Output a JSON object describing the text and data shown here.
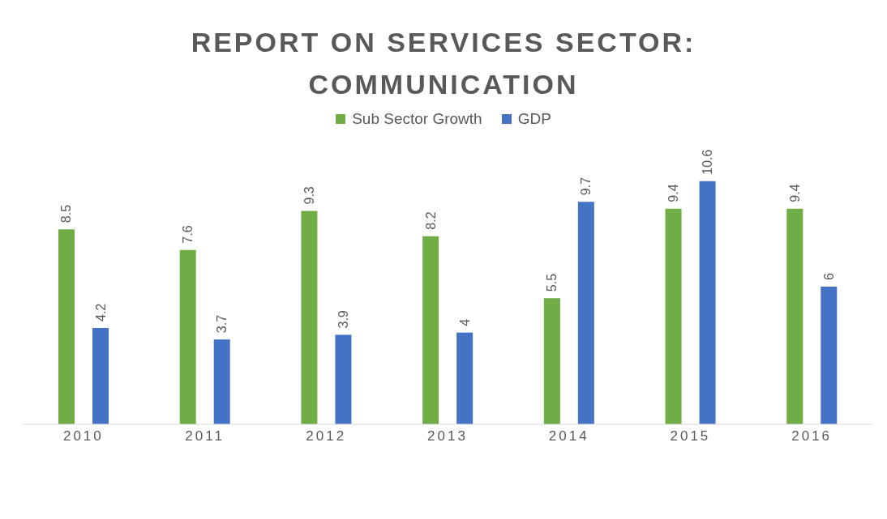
{
  "chart_data": {
    "type": "bar",
    "title": "REPORT ON SERVICES SECTOR: COMMUNICATION",
    "categories": [
      "2010",
      "2011",
      "2012",
      "2013",
      "2014",
      "2015",
      "2016"
    ],
    "series": [
      {
        "name": "Sub Sector Growth",
        "color": "#70ad47",
        "values": [
          8.5,
          7.6,
          9.3,
          8.2,
          5.5,
          9.4,
          9.4
        ]
      },
      {
        "name": "GDP",
        "color": "#4472c4",
        "values": [
          4.2,
          3.7,
          3.9,
          4,
          9.7,
          10.6,
          6
        ]
      }
    ],
    "tick_labels": "x",
    "data_labels": true,
    "legend": "top"
  }
}
